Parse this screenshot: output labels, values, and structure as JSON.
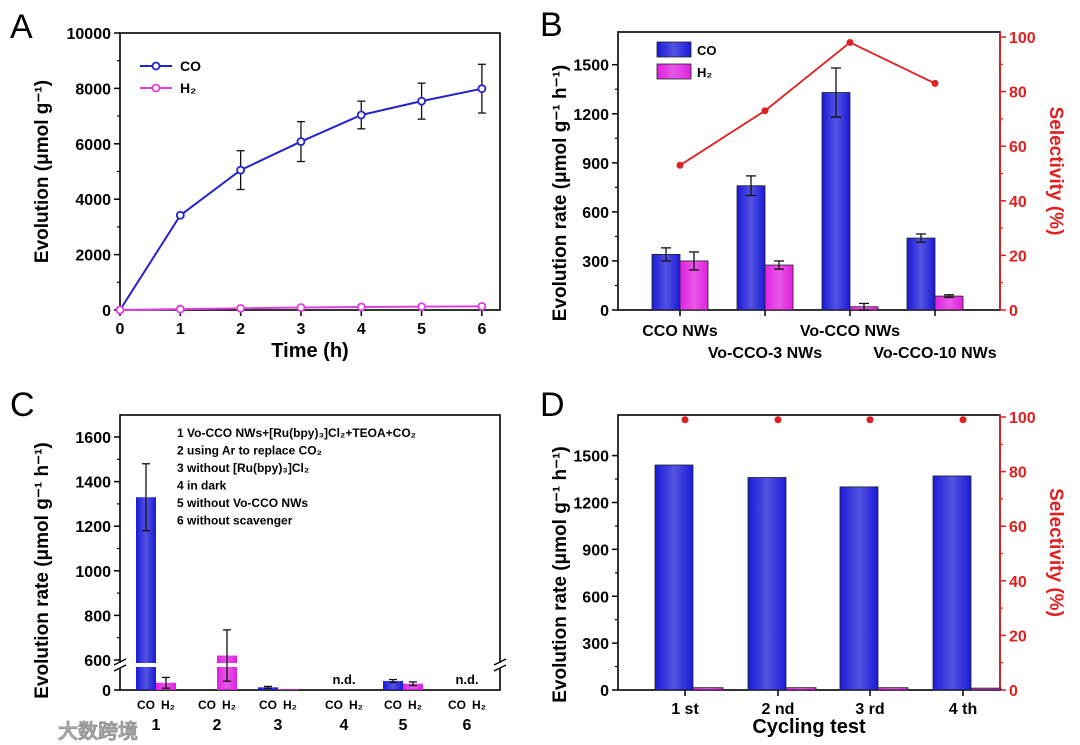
{
  "watermark": "大数跨境",
  "chart_data": [
    {
      "panel": "A",
      "type": "line",
      "xlabel": "Time (h)",
      "ylabel": "Evolution (μmol g⁻¹)",
      "xlim": [
        0,
        6.3
      ],
      "ylim": [
        0,
        10000
      ],
      "xticks": [
        0,
        1,
        2,
        3,
        4,
        5,
        6
      ],
      "yticks": [
        0,
        2000,
        4000,
        6000,
        8000,
        10000
      ],
      "legend_position": "top-left",
      "x": [
        0,
        1,
        2,
        3,
        4,
        5,
        6
      ],
      "series": [
        {
          "name": "CO",
          "color": "#2323c8",
          "values": [
            0,
            3420,
            5050,
            6080,
            7040,
            7540,
            7990
          ],
          "errors": [
            0,
            40,
            700,
            720,
            500,
            650,
            880
          ]
        },
        {
          "name": "H₂",
          "color": "#e040e0",
          "values": [
            0,
            30,
            60,
            90,
            110,
            120,
            130
          ],
          "errors": [
            0,
            10,
            10,
            15,
            15,
            15,
            15
          ]
        }
      ]
    },
    {
      "panel": "B",
      "type": "bar",
      "ylabel": "Evolution rate (μmol g⁻¹ h⁻¹)",
      "y2label": "Selectivity (%)",
      "ylim": [
        0,
        1700
      ],
      "y2lim": [
        0,
        100
      ],
      "yticks": [
        0,
        300,
        600,
        900,
        1200,
        1500
      ],
      "y2ticks": [
        0,
        20,
        40,
        60,
        80,
        100
      ],
      "legend_position": "top-left",
      "categories": [
        "CCO NWs",
        "Vo-CCO-3 NWs",
        "Vo-CCO NWs",
        "Vo-CCO-10 NWs"
      ],
      "series": [
        {
          "name": "CO",
          "color": "#1a1ad8",
          "values": [
            340,
            760,
            1330,
            440
          ],
          "errors": [
            40,
            60,
            150,
            25
          ]
        },
        {
          "name": "H₂",
          "color": "#e020e0",
          "values": [
            300,
            275,
            20,
            85
          ],
          "errors": [
            55,
            25,
            20,
            8
          ]
        }
      ],
      "line_series": {
        "name": "Selectivity",
        "color": "#e02020",
        "values": [
          53,
          73,
          98,
          83
        ]
      }
    },
    {
      "panel": "C",
      "type": "bar",
      "ylabel": "Evolution rate (μmol g⁻¹ h⁻¹)",
      "ylim": [
        0,
        1700
      ],
      "axis_break": [
        150,
        560
      ],
      "yticks": [
        0,
        600,
        800,
        1000,
        1200,
        1400,
        1600
      ],
      "categories": [
        "1",
        "2",
        "3",
        "4",
        "5",
        "6"
      ],
      "sub_labels": [
        "CO",
        "H₂"
      ],
      "series": [
        {
          "name": "CO",
          "color": "#1a1ad8",
          "values": [
            1330,
            0,
            15,
            null,
            50,
            null
          ],
          "errors": [
            150,
            0,
            5,
            null,
            8,
            null
          ]
        },
        {
          "name": "H₂",
          "color": "#e020e0",
          "values": [
            40,
            620,
            5,
            null,
            35,
            null
          ],
          "errors": [
            30,
            115,
            0,
            null,
            10,
            null
          ]
        }
      ],
      "not_detected_label": "n.d.",
      "legend_items": [
        "1 Vo-CCO NWs+[Ru(bpy)₃]Cl₂+TEOA+CO₂",
        "2 using Ar to replace CO₂",
        "3 without [Ru(bpy)₃]Cl₂",
        "4 in dark",
        "5 without Vo-CCO NWs",
        "6 without scavenger"
      ]
    },
    {
      "panel": "D",
      "type": "bar",
      "xlabel": "Cycling test",
      "ylabel": "Evolution rate (μmol g⁻¹ h⁻¹)",
      "y2label": "Selectivity (%)",
      "ylim": [
        0,
        1760
      ],
      "y2lim": [
        0,
        100
      ],
      "yticks": [
        0,
        300,
        600,
        900,
        1200,
        1500
      ],
      "y2ticks": [
        0,
        20,
        40,
        60,
        80,
        100
      ],
      "categories": [
        "1 st",
        "2 nd",
        "3 rd",
        "4 th"
      ],
      "series": [
        {
          "name": "CO",
          "color": "#1a1ad8",
          "values": [
            1440,
            1360,
            1300,
            1370
          ]
        },
        {
          "name": "H₂",
          "color": "#e020e0",
          "values": [
            15,
            15,
            15,
            12
          ]
        }
      ],
      "scatter_series": {
        "name": "Selectivity",
        "color": "#e02020",
        "values": [
          99,
          99,
          99,
          99
        ]
      }
    }
  ]
}
